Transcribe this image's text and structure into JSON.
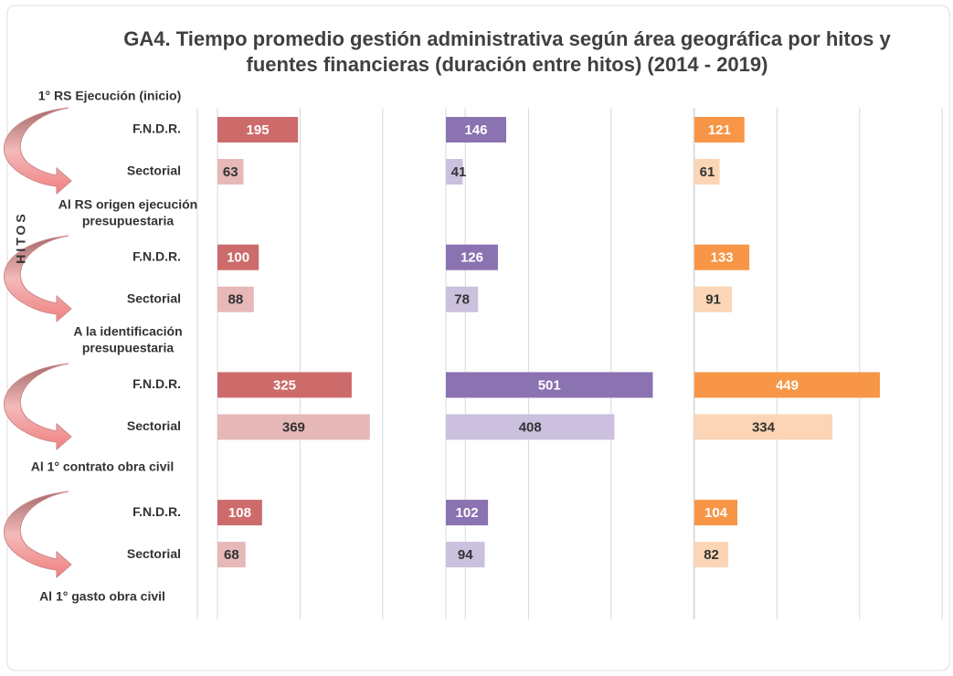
{
  "chart_data": {
    "type": "bar",
    "orientation": "horizontal",
    "title": [
      "GA4. Tiempo promedio gestión administrativa según área geográfica por hitos y",
      "fuentes financieras  (duración entre hitos) (2014 - 2019)"
    ],
    "y_label": "HITOS",
    "categories": [
      "F.N.D.R.",
      "Sectorial",
      "F.N.D.R.",
      "Sectorial",
      "F.N.D.R.",
      "Sectorial",
      "F.N.D.R.",
      "Sectorial"
    ],
    "milestones": [
      [
        "1° RS Ejecución (inicio)"
      ],
      [
        "Al RS origen ejecución",
        "presupuestaria"
      ],
      [
        "A la identificación",
        "presupuestaria"
      ],
      [
        "Al 1° contrato obra civil"
      ],
      [
        "Al 1° gasto obra civil"
      ]
    ],
    "xlim": [
      0,
      600
    ],
    "xticks": [
      0,
      200,
      400,
      600
    ],
    "grid": true,
    "series": [
      {
        "colors": [
          "#cd6b6b",
          "#e6b8b8"
        ],
        "values": [
          195,
          63,
          100,
          88,
          325,
          369,
          108,
          68
        ]
      },
      {
        "colors": [
          "#8b72b0",
          "#cbc0dd"
        ],
        "values": [
          146,
          41,
          126,
          78,
          501,
          408,
          102,
          94
        ]
      },
      {
        "colors": [
          "#f79646",
          "#fbd5b5"
        ],
        "values": [
          121,
          61,
          133,
          91,
          449,
          334,
          104,
          82
        ]
      }
    ]
  }
}
